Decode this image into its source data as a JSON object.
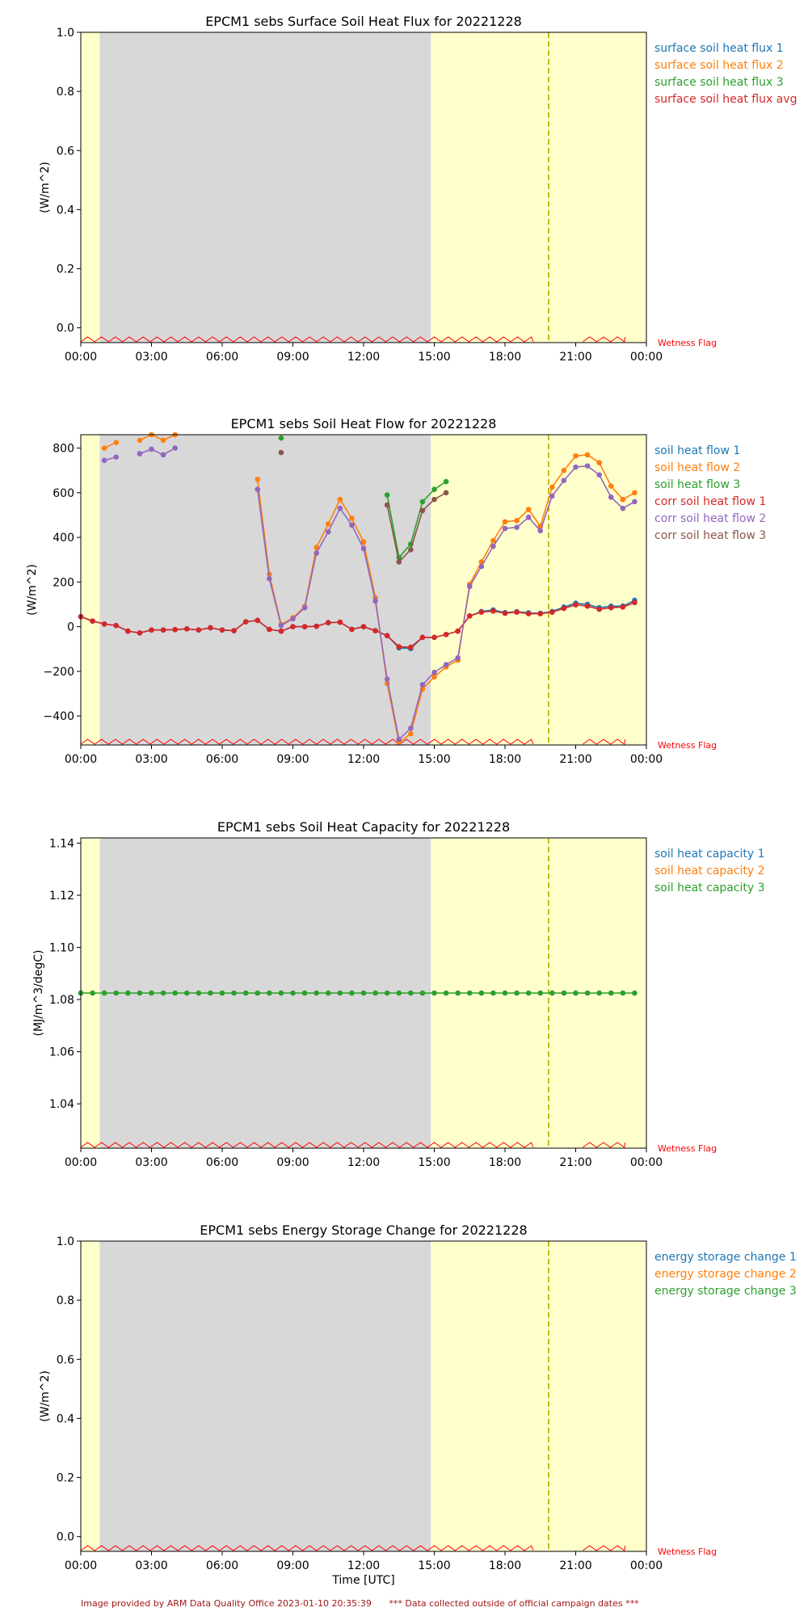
{
  "figure": {
    "footer_left": "Image provided by ARM Data Quality Office 2023-01-10 20:35:39",
    "footer_right": "*** Data collected outside of official campaign dates ***",
    "xlabel": "Time [UTC]",
    "x_ticks": [
      "00:00",
      "03:00",
      "06:00",
      "09:00",
      "12:00",
      "15:00",
      "18:00",
      "21:00",
      "00:00"
    ],
    "shading": {
      "night_start_hour": 0.8,
      "night_end_hour": 14.85,
      "day_color": "#ffffcc",
      "night_color": "#d8d8d8",
      "dashed_line_hour": 19.85,
      "dashed_line_color": "#b8b800"
    },
    "wetness_flag": {
      "label": "Wetness Flag",
      "color": "#ff0000",
      "segments": [
        [
          0,
          19.2
        ],
        [
          21.3,
          23.1
        ]
      ]
    }
  },
  "chart_data": [
    {
      "type": "line",
      "title": "EPCM1 sebs Surface Soil Heat Flux for 20221228",
      "ylabel": "(W/m^2)",
      "ylim": [
        -0.05,
        1.0
      ],
      "yticks": [
        0.0,
        0.2,
        0.4,
        0.6,
        0.8,
        1.0
      ],
      "y_decimals": 1,
      "legend": [
        "surface soil heat flux 1",
        "surface soil heat flux 2",
        "surface soil heat flux 3",
        "surface soil heat flux avg"
      ],
      "legend_colors": [
        "#1f77b4",
        "#ff7f0e",
        "#2ca02c",
        "#d62728"
      ],
      "series": []
    },
    {
      "type": "line",
      "title": "EPCM1 sebs Soil Heat Flow for 20221228",
      "ylabel": "(W/m^2)",
      "ylim": [
        -530,
        860
      ],
      "yticks": [
        -400,
        -200,
        0,
        200,
        400,
        600,
        800
      ],
      "y_decimals": 0,
      "legend": [
        "soil heat flow 1",
        "soil heat flow 2",
        "soil heat flow 3",
        "corr soil heat flow 1",
        "corr soil heat flow 2",
        "corr soil heat flow 3"
      ],
      "legend_colors": [
        "#1f77b4",
        "#ff7f0e",
        "#2ca02c",
        "#d62728",
        "#9467bd",
        "#8c564b"
      ],
      "series": [
        {
          "name": "soil heat flow 1",
          "color": "#1f77b4",
          "points": [
            [
              0,
              45
            ],
            [
              0.5,
              25
            ],
            [
              1,
              12
            ],
            [
              1.5,
              5
            ],
            [
              2,
              -20
            ],
            [
              2.5,
              -28
            ],
            [
              3,
              -15
            ],
            [
              3.5,
              -15
            ],
            [
              4,
              -13
            ],
            [
              4.5,
              -10
            ],
            [
              5,
              -15
            ],
            [
              5.5,
              -5
            ],
            [
              6,
              -15
            ],
            [
              6.5,
              -18
            ],
            [
              7,
              22
            ],
            [
              7.5,
              28
            ],
            [
              8,
              -12
            ],
            [
              8.5,
              -20
            ],
            [
              9,
              0
            ],
            [
              9.5,
              0
            ],
            [
              10,
              2
            ],
            [
              10.5,
              18
            ],
            [
              11,
              20
            ],
            [
              11.5,
              -12
            ],
            [
              12,
              0
            ],
            [
              12.5,
              -18
            ],
            [
              13,
              -40
            ],
            [
              13.5,
              -95
            ],
            [
              14,
              -98
            ],
            [
              14.5,
              -48
            ],
            [
              15,
              -48
            ],
            [
              15.5,
              -35
            ],
            [
              16,
              -20
            ],
            [
              16.5,
              48
            ],
            [
              17,
              68
            ],
            [
              17.5,
              75
            ],
            [
              18,
              63
            ],
            [
              18.5,
              67
            ],
            [
              19,
              62
            ],
            [
              19.5,
              60
            ],
            [
              20,
              68
            ],
            [
              20.5,
              88
            ],
            [
              21,
              105
            ],
            [
              21.5,
              100
            ],
            [
              22,
              85
            ],
            [
              22.5,
              92
            ],
            [
              23,
              92
            ],
            [
              23.5,
              118
            ]
          ]
        },
        {
          "name": "soil heat flow 2",
          "color": "#ff7f0e",
          "points": [
            [
              1,
              800
            ],
            [
              1.5,
              825
            ],
            null,
            [
              2.5,
              835
            ],
            [
              3,
              860
            ],
            [
              3.5,
              835
            ],
            [
              4,
              860
            ],
            null,
            [
              7.5,
              660
            ],
            [
              8,
              235
            ],
            [
              8.5,
              10
            ],
            [
              9,
              40
            ],
            [
              9.5,
              90
            ],
            [
              10,
              355
            ],
            [
              10.5,
              460
            ],
            [
              11,
              570
            ],
            [
              11.5,
              485
            ],
            [
              12,
              380
            ],
            [
              12.5,
              130
            ],
            [
              13,
              -255
            ],
            [
              13.5,
              -520
            ],
            [
              14,
              -480
            ],
            [
              14.5,
              -280
            ],
            [
              15,
              -225
            ],
            [
              15.5,
              -180
            ],
            [
              16,
              -150
            ],
            [
              16.5,
              190
            ],
            [
              17,
              290
            ],
            [
              17.5,
              385
            ],
            [
              18,
              470
            ],
            [
              18.5,
              475
            ],
            [
              19,
              525
            ],
            [
              19.5,
              450
            ],
            [
              20,
              625
            ],
            [
              20.5,
              700
            ],
            [
              21,
              765
            ],
            [
              21.5,
              770
            ],
            [
              22,
              735
            ],
            [
              22.5,
              630
            ],
            [
              23,
              570
            ],
            [
              23.5,
              600
            ]
          ]
        },
        {
          "name": "soil heat flow 3",
          "color": "#2ca02c",
          "points": [
            [
              8.5,
              845
            ],
            null,
            [
              13,
              590
            ],
            [
              13.5,
              310
            ],
            [
              14,
              370
            ],
            [
              14.5,
              560
            ],
            [
              15,
              615
            ],
            [
              15.5,
              650
            ]
          ]
        },
        {
          "name": "corr soil heat flow 1",
          "color": "#d62728",
          "points": [
            [
              0,
              45
            ],
            [
              0.5,
              25
            ],
            [
              1,
              12
            ],
            [
              1.5,
              5
            ],
            [
              2,
              -20
            ],
            [
              2.5,
              -28
            ],
            [
              3,
              -15
            ],
            [
              3.5,
              -15
            ],
            [
              4,
              -13
            ],
            [
              4.5,
              -10
            ],
            [
              5,
              -15
            ],
            [
              5.5,
              -5
            ],
            [
              6,
              -15
            ],
            [
              6.5,
              -18
            ],
            [
              7,
              22
            ],
            [
              7.5,
              28
            ],
            [
              8,
              -12
            ],
            [
              8.5,
              -20
            ],
            [
              9,
              0
            ],
            [
              9.5,
              0
            ],
            [
              10,
              2
            ],
            [
              10.5,
              18
            ],
            [
              11,
              20
            ],
            [
              11.5,
              -12
            ],
            [
              12,
              0
            ],
            [
              12.5,
              -18
            ],
            [
              13,
              -40
            ],
            [
              13.5,
              -90
            ],
            [
              14,
              -92
            ],
            [
              14.5,
              -48
            ],
            [
              15,
              -48
            ],
            [
              15.5,
              -35
            ],
            [
              16,
              -20
            ],
            [
              16.5,
              48
            ],
            [
              17,
              65
            ],
            [
              17.5,
              70
            ],
            [
              18,
              60
            ],
            [
              18.5,
              65
            ],
            [
              19,
              58
            ],
            [
              19.5,
              58
            ],
            [
              20,
              65
            ],
            [
              20.5,
              82
            ],
            [
              21,
              98
            ],
            [
              21.5,
              92
            ],
            [
              22,
              78
            ],
            [
              22.5,
              85
            ],
            [
              23,
              88
            ],
            [
              23.5,
              108
            ]
          ]
        },
        {
          "name": "corr soil heat flow 2",
          "color": "#9467bd",
          "points": [
            [
              1,
              745
            ],
            [
              1.5,
              760
            ],
            null,
            [
              2.5,
              775
            ],
            [
              3,
              795
            ],
            [
              3.5,
              770
            ],
            [
              4,
              800
            ],
            null,
            [
              7.5,
              615
            ],
            [
              8,
              215
            ],
            [
              8.5,
              5
            ],
            [
              9,
              35
            ],
            [
              9.5,
              85
            ],
            [
              10,
              330
            ],
            [
              10.5,
              425
            ],
            [
              11,
              530
            ],
            [
              11.5,
              455
            ],
            [
              12,
              350
            ],
            [
              12.5,
              115
            ],
            [
              13,
              -235
            ],
            [
              13.5,
              -505
            ],
            [
              14,
              -455
            ],
            [
              14.5,
              -260
            ],
            [
              15,
              -205
            ],
            [
              15.5,
              -170
            ],
            [
              16,
              -140
            ],
            [
              16.5,
              180
            ],
            [
              17,
              270
            ],
            [
              17.5,
              360
            ],
            [
              18,
              440
            ],
            [
              18.5,
              445
            ],
            [
              19,
              490
            ],
            [
              19.5,
              430
            ],
            [
              20,
              585
            ],
            [
              20.5,
              655
            ],
            [
              21,
              715
            ],
            [
              21.5,
              720
            ],
            [
              22,
              680
            ],
            [
              22.5,
              580
            ],
            [
              23,
              530
            ],
            [
              23.5,
              560
            ]
          ]
        },
        {
          "name": "corr soil heat flow 3",
          "color": "#8c564b",
          "points": [
            [
              8.5,
              780
            ],
            null,
            [
              13,
              545
            ],
            [
              13.5,
              290
            ],
            [
              14,
              345
            ],
            [
              14.5,
              520
            ],
            [
              15,
              570
            ],
            [
              15.5,
              600
            ]
          ]
        }
      ]
    },
    {
      "type": "line",
      "title": "EPCM1 sebs Soil Heat Capacity for 20221228",
      "ylabel": "(MJ/m^3/degC)",
      "ylim": [
        1.023,
        1.142
      ],
      "yticks": [
        1.04,
        1.06,
        1.08,
        1.1,
        1.12,
        1.14
      ],
      "y_decimals": 2,
      "legend": [
        "soil heat capacity 1",
        "soil heat capacity 2",
        "soil heat capacity 3"
      ],
      "legend_colors": [
        "#1f77b4",
        "#ff7f0e",
        "#2ca02c"
      ],
      "series": [
        {
          "name": "soil heat capacity 3",
          "color": "#2ca02c",
          "constant": 1.0825,
          "x_start": 0,
          "x_end": 23.5,
          "x_step": 0.5
        }
      ]
    },
    {
      "type": "line",
      "title": "EPCM1 sebs Energy Storage Change for 20221228",
      "ylabel": "(W/m^2)",
      "ylim": [
        -0.05,
        1.0
      ],
      "yticks": [
        0.0,
        0.2,
        0.4,
        0.6,
        0.8,
        1.0
      ],
      "y_decimals": 1,
      "legend": [
        "energy storage change 1",
        "energy storage change 2",
        "energy storage change 3"
      ],
      "legend_colors": [
        "#1f77b4",
        "#ff7f0e",
        "#2ca02c"
      ],
      "series": []
    }
  ]
}
